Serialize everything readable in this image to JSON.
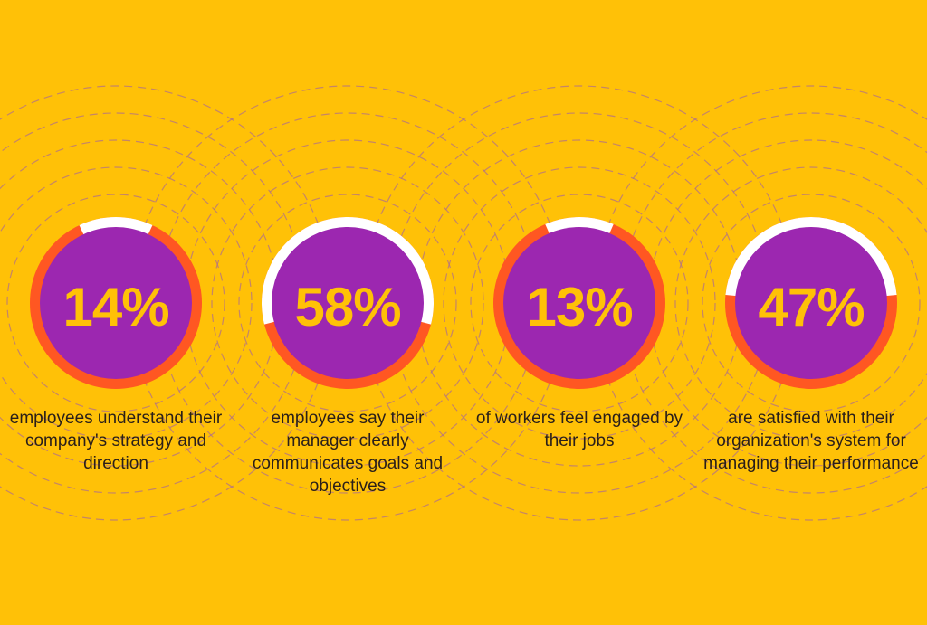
{
  "colors": {
    "background": "#FFC107",
    "circle_fill": "#9C27B0",
    "ring_track": "#FF5722",
    "ring_highlight": "#FFFFFF",
    "value_text": "#FFC107",
    "dashed_rings": "#B0708A"
  },
  "chart_data": {
    "type": "pie",
    "title": "",
    "stats": [
      {
        "value": 14,
        "label": "14%",
        "caption": "employees understand their company's strategy and direction"
      },
      {
        "value": 58,
        "label": "58%",
        "caption": "employees say their manager clearly communicates goals and objectives"
      },
      {
        "value": 13,
        "label": "13%",
        "caption": "of workers feel engaged by their jobs"
      },
      {
        "value": 47,
        "label": "47%",
        "caption": "are satisfied with their organization's system for managing their performance"
      }
    ]
  }
}
